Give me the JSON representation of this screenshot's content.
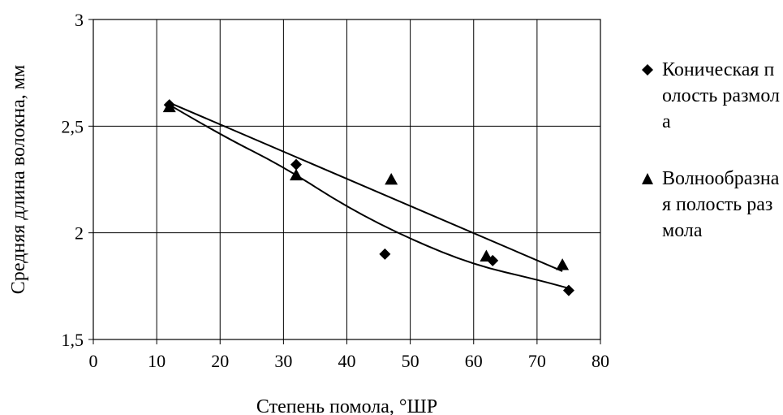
{
  "chart_data": {
    "type": "scatter",
    "xlabel": "Степень помола, °ШР",
    "ylabel": "Средняя длина волокна, мм",
    "xlim": [
      0,
      80
    ],
    "ylim": [
      1.5,
      3
    ],
    "x_ticks": [
      "0",
      "10",
      "20",
      "30",
      "40",
      "50",
      "60",
      "70",
      "80"
    ],
    "y_ticks": [
      "1,5",
      "2",
      "2,5",
      "3"
    ],
    "grid": true,
    "legend_position": "right",
    "series": [
      {
        "name": "Коническая полость размола",
        "marker": "diamond",
        "color": "#000000",
        "x": [
          12,
          32,
          46,
          63,
          75
        ],
        "y": [
          2.6,
          2.32,
          1.9,
          1.87,
          1.73
        ],
        "trendline": "polynomial",
        "trend_points": [
          [
            12,
            2.6
          ],
          [
            20,
            2.46
          ],
          [
            30,
            2.31
          ],
          [
            40,
            2.12
          ],
          [
            50,
            1.97
          ],
          [
            60,
            1.85
          ],
          [
            70,
            1.78
          ],
          [
            75,
            1.74
          ]
        ]
      },
      {
        "name": "Волнообразная полость размола",
        "marker": "triangle",
        "color": "#000000",
        "x": [
          12,
          32,
          47,
          62,
          74
        ],
        "y": [
          2.59,
          2.27,
          2.25,
          1.89,
          1.85
        ],
        "trendline": "linear",
        "trend_points": [
          [
            12,
            2.61
          ],
          [
            74,
            1.82
          ]
        ]
      }
    ]
  },
  "legend": {
    "items": [
      {
        "label": "Коническая полость размола",
        "marker": "diamond-icon"
      },
      {
        "label": "Волнообразная полость размола",
        "marker": "triangle-icon"
      }
    ]
  }
}
